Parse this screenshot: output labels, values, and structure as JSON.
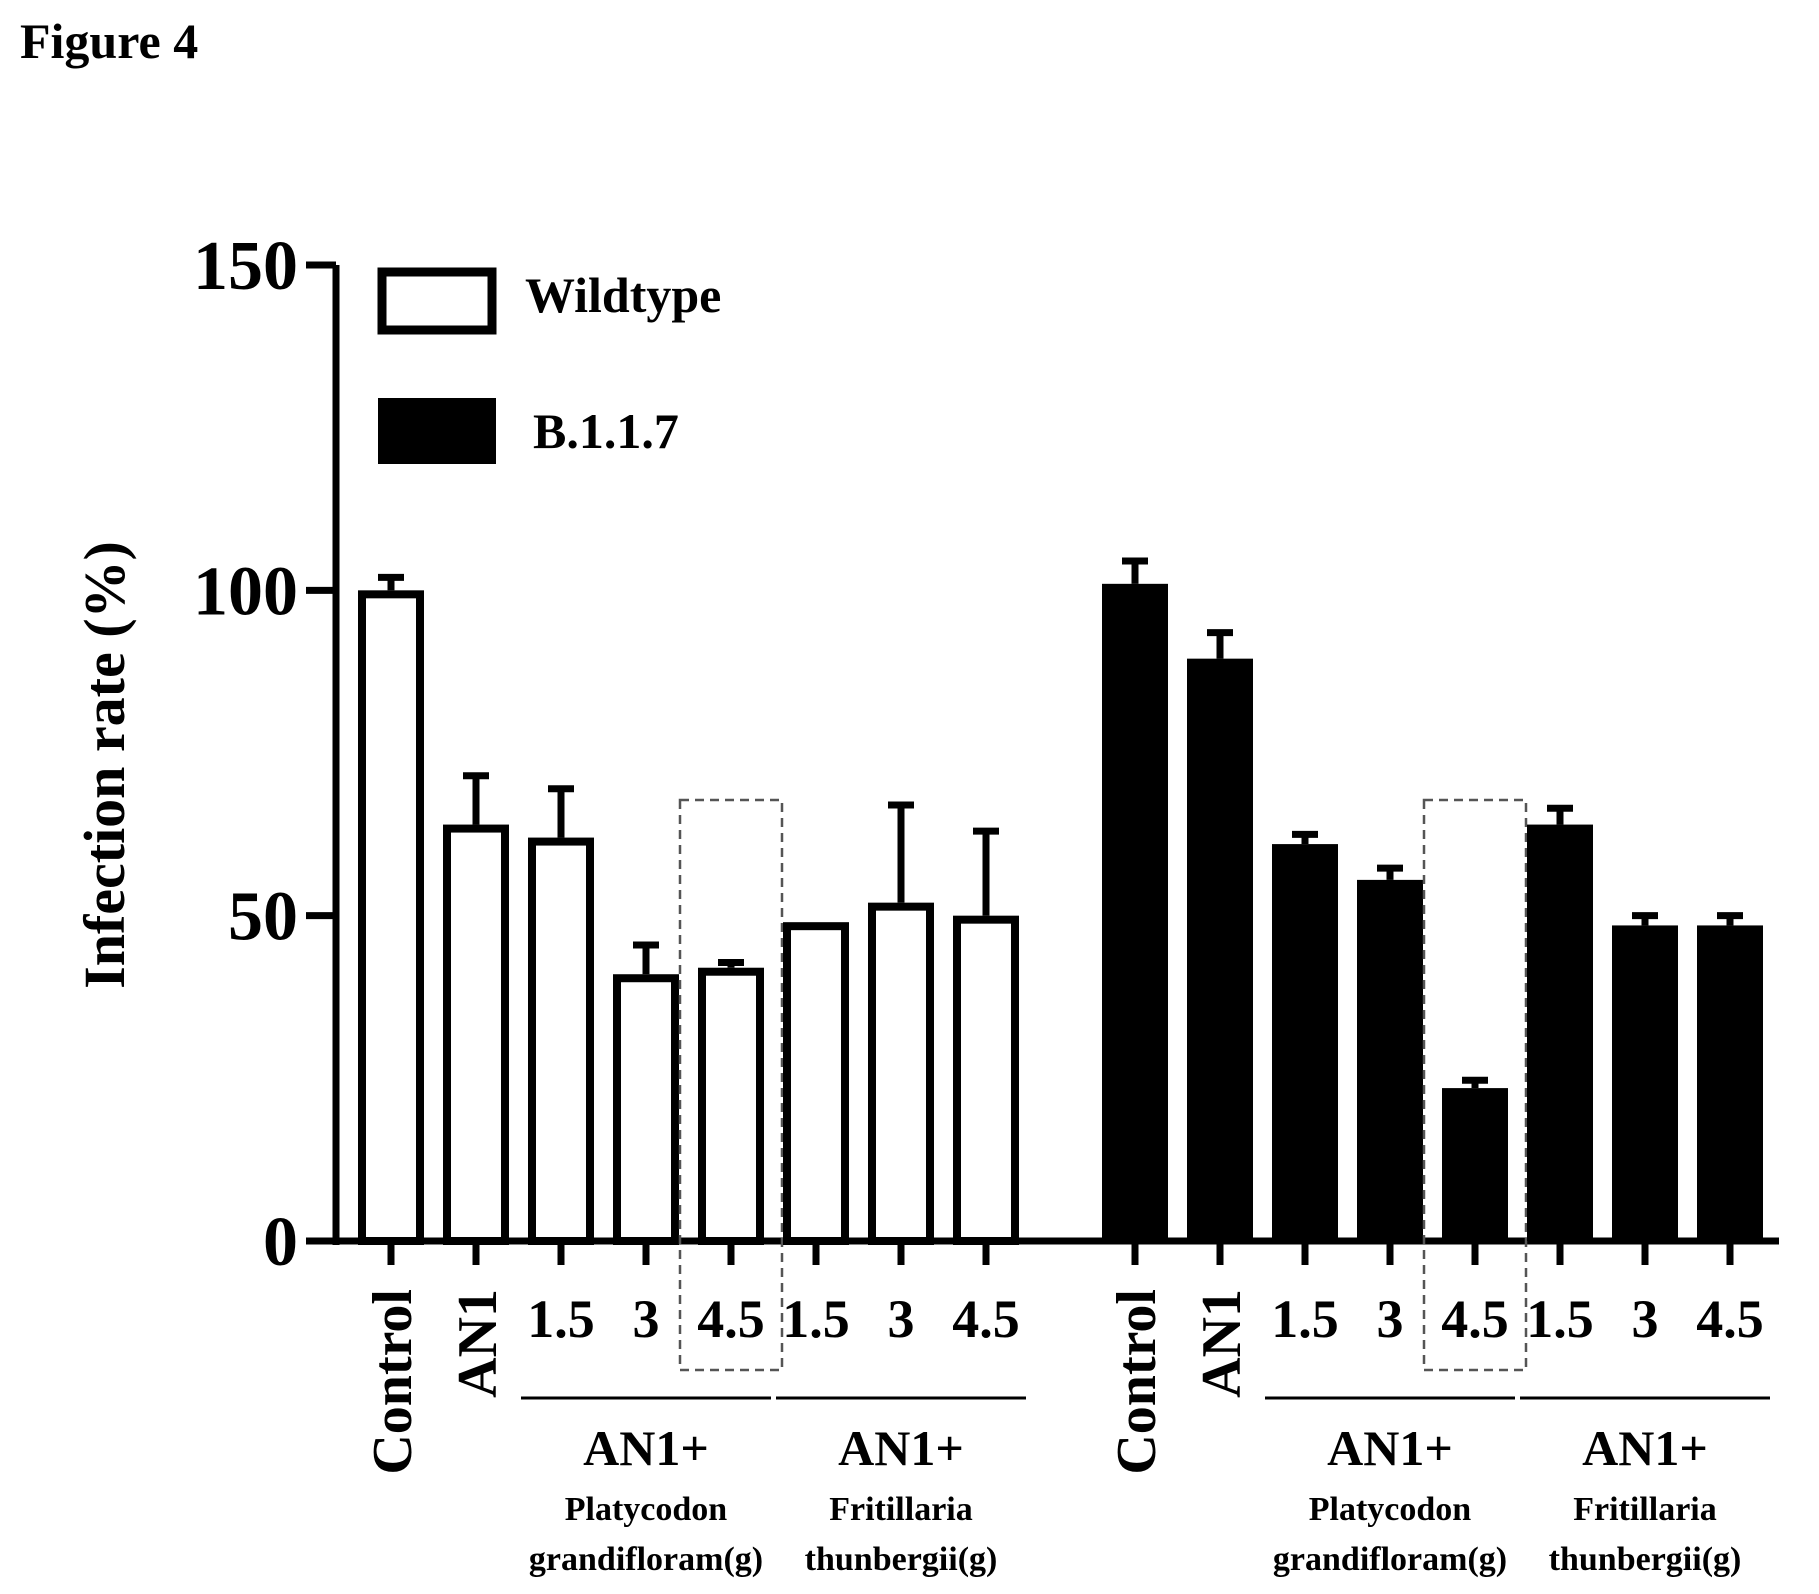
{
  "figure_label": "Figure 4",
  "chart_data": {
    "type": "bar",
    "title": "",
    "xlabel": "",
    "ylabel": "Infection rate (%)",
    "ylim": [
      0,
      150
    ],
    "yticks": [
      "0",
      "50",
      "100",
      "150"
    ],
    "grid": false,
    "legend": {
      "placement": "top-left",
      "entries": [
        {
          "name": "Wildtype",
          "style": "open",
          "color": "#ffffff"
        },
        {
          "name": "B.1.1.7",
          "style": "filled",
          "color": "#000000"
        }
      ]
    },
    "groups": [
      {
        "series": "Wildtype",
        "bars": [
          {
            "label": "Control",
            "value": 100,
            "error": 2,
            "rotated": true
          },
          {
            "label": "AN1",
            "value": 64,
            "error": 7.5,
            "rotated": true
          },
          {
            "label": "1.5",
            "value": 62,
            "error": 7.5,
            "rotated": false
          },
          {
            "label": "3",
            "value": 41,
            "error": 4.5,
            "rotated": false
          },
          {
            "label": "4.5",
            "value": 42,
            "error": 0.8,
            "rotated": false,
            "highlighted": true
          },
          {
            "label": "1.5",
            "value": 49,
            "error": 0,
            "rotated": false
          },
          {
            "label": "3",
            "value": 52,
            "error": 15,
            "rotated": false
          },
          {
            "label": "4.5",
            "value": 50,
            "error": 13,
            "rotated": false
          }
        ],
        "subgroups": [
          {
            "prefix": "AN1+",
            "line1": "Platycodon",
            "line2": "grandifloram(g)",
            "from": 2,
            "to": 4
          },
          {
            "prefix": "AN1+",
            "line1": "Fritillaria",
            "line2": "thunbergii(g)",
            "from": 5,
            "to": 7
          }
        ]
      },
      {
        "series": "B.1.1.7",
        "bars": [
          {
            "label": "Control",
            "value": 101,
            "error": 3.5,
            "rotated": true
          },
          {
            "label": "AN1",
            "value": 89.5,
            "error": 4,
            "rotated": true
          },
          {
            "label": "1.5",
            "value": 61,
            "error": 1.5,
            "rotated": false
          },
          {
            "label": "3",
            "value": 55.5,
            "error": 1.8,
            "rotated": false
          },
          {
            "label": "4.5",
            "value": 23.5,
            "error": 1.2,
            "rotated": false,
            "highlighted": true
          },
          {
            "label": "1.5",
            "value": 64,
            "error": 2.5,
            "rotated": false
          },
          {
            "label": "3",
            "value": 48.5,
            "error": 1.5,
            "rotated": false
          },
          {
            "label": "4.5",
            "value": 48.5,
            "error": 1.5,
            "rotated": false
          }
        ],
        "subgroups": [
          {
            "prefix": "AN1+",
            "line1": "Platycodon",
            "line2": "grandifloram(g)",
            "from": 2,
            "to": 4
          },
          {
            "prefix": "AN1+",
            "line1": "Fritillaria",
            "line2": "thunbergii(g)",
            "from": 5,
            "to": 7
          }
        ]
      }
    ]
  }
}
